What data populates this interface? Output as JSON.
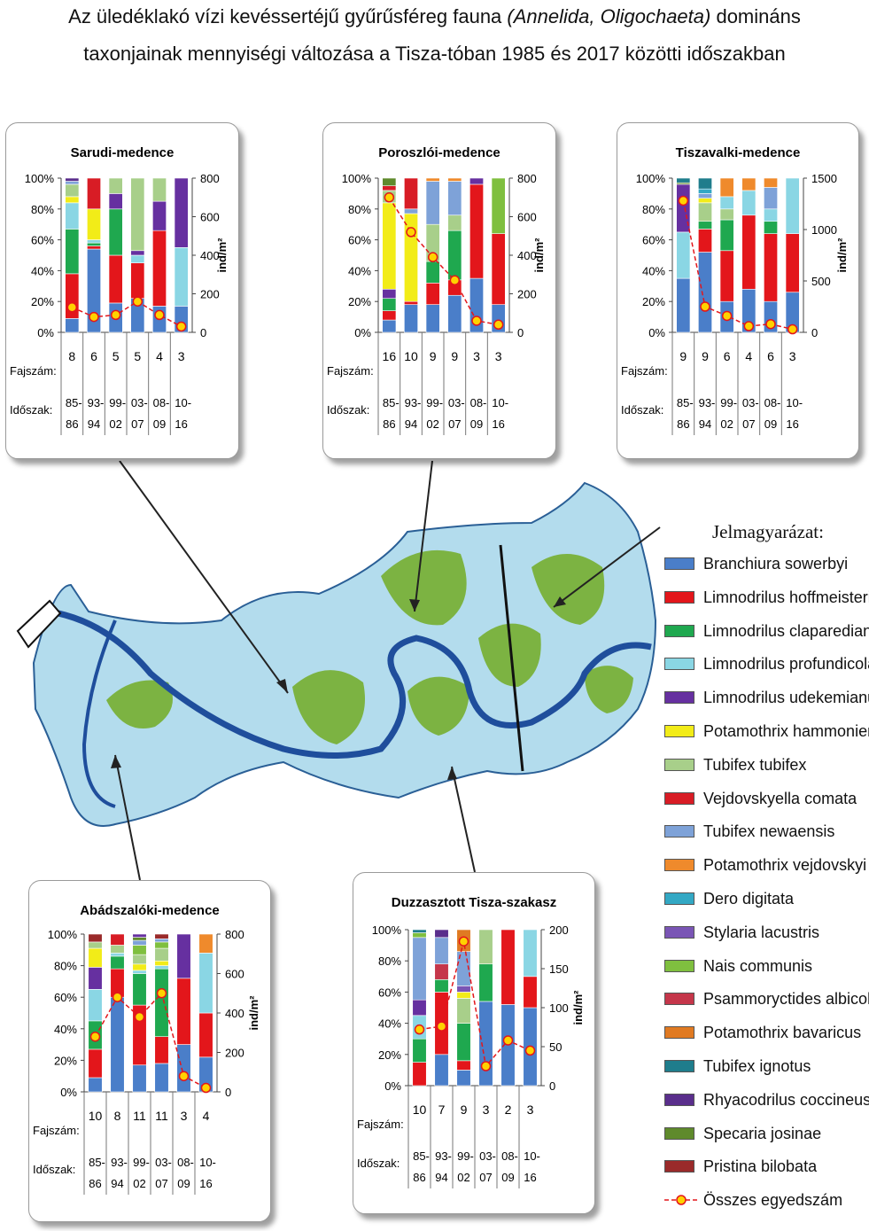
{
  "title": {
    "line1_prefix": "Az üledéklakó vízi kevéssertéjű gyűrűsféreg fauna ",
    "line1_italic": "(Annelida, Oligochaeta)",
    "line1_suffix": " domináns",
    "line2": "taxonjainak mennyiségi változása a Tisza-tóban 1985 és 2017 közötti időszakban"
  },
  "row_labels": {
    "fajszam": "Fajszám:",
    "idoszak": "Időszak:"
  },
  "unit_label": "ind/m²",
  "legend": {
    "title": "Jelmagyarázat:",
    "items": [
      {
        "label": "Branchiura sowerbyi",
        "color": "#4a7ec9"
      },
      {
        "label": "Limnodrilus hoffmeisteri",
        "color": "#e3161b"
      },
      {
        "label": "Limnodrilus claparedianus",
        "color": "#1fa84f"
      },
      {
        "label": "Limnodrilus profundicola",
        "color": "#8ad6e4"
      },
      {
        "label": "Limnodrilus udekemianus",
        "color": "#6630a0"
      },
      {
        "label": "Potamothrix hammoniensis",
        "color": "#f2ec18"
      },
      {
        "label": "Tubifex tubifex",
        "color": "#a8cf8a"
      },
      {
        "label": "Vejdovskyella comata",
        "color": "#d81c25"
      },
      {
        "label": "Tubifex newaensis",
        "color": "#7ea2d8"
      },
      {
        "label": "Potamothrix vejdovskyi",
        "color": "#ef8a2c"
      },
      {
        "label": "Dero digitata",
        "color": "#33a8c4"
      },
      {
        "label": "Stylaria lacustris",
        "color": "#7a55b5"
      },
      {
        "label": "Nais communis",
        "color": "#7fbf3f"
      },
      {
        "label": "Psammoryctides albicola",
        "color": "#c5364a"
      },
      {
        "label": "Potamothrix bavaricus",
        "color": "#e07a22"
      },
      {
        "label": "Tubifex ignotus",
        "color": "#1f7d8c"
      },
      {
        "label": "Rhyacodrilus coccineus",
        "color": "#5a2e8c"
      },
      {
        "label": "Specaria josinae",
        "color": "#5f8a2c"
      },
      {
        "label": "Pristina bilobata",
        "color": "#9a2a2a"
      }
    ],
    "total_label": "Összes egyedszám",
    "total_color": "#e3161b"
  },
  "chart_data": [
    {
      "type": "bar",
      "title": "Sarudi-medence",
      "categories": [
        "85-86",
        "93-94",
        "99-02",
        "03-07",
        "08-09",
        "10-16"
      ],
      "fajszam": [
        8,
        6,
        5,
        5,
        4,
        3
      ],
      "ylim": [
        0,
        100
      ],
      "y2lim": [
        0,
        800
      ],
      "y2ticks": [
        0,
        200,
        400,
        600,
        800
      ],
      "y2label": "ind/m²",
      "stacks": [
        [
          [
            "Branchiura sowerbyi",
            9
          ],
          [
            "Limnodrilus hoffmeisteri",
            29
          ],
          [
            "Limnodrilus claparedianus",
            29
          ],
          [
            "Limnodrilus profundicola",
            17
          ],
          [
            "Potamothrix hammoniensis",
            4
          ],
          [
            "Tubifex tubifex",
            8
          ],
          [
            "Tubifex newaensis",
            2
          ],
          [
            "Rhyacodrilus coccineus",
            2
          ]
        ],
        [
          [
            "Branchiura sowerbyi",
            54
          ],
          [
            "Limnodrilus hoffmeisteri",
            2
          ],
          [
            "Limnodrilus claparedianus",
            2
          ],
          [
            "Limnodrilus profundicola",
            2
          ],
          [
            "Potamothrix hammoniensis",
            20
          ],
          [
            "Vejdovskyella comata",
            20
          ]
        ],
        [
          [
            "Branchiura sowerbyi",
            19
          ],
          [
            "Limnodrilus hoffmeisteri",
            31
          ],
          [
            "Limnodrilus claparedianus",
            30
          ],
          [
            "Limnodrilus udekemianus",
            10
          ],
          [
            "Tubifex tubifex",
            10
          ]
        ],
        [
          [
            "Branchiura sowerbyi",
            22
          ],
          [
            "Limnodrilus hoffmeisteri",
            23
          ],
          [
            "Limnodrilus profundicola",
            5
          ],
          [
            "Limnodrilus udekemianus",
            3
          ],
          [
            "Tubifex tubifex",
            47
          ]
        ],
        [
          [
            "Branchiura sowerbyi",
            17
          ],
          [
            "Limnodrilus hoffmeisteri",
            49
          ],
          [
            "Limnodrilus udekemianus",
            19
          ],
          [
            "Tubifex tubifex",
            15
          ]
        ],
        [
          [
            "Branchiura sowerbyi",
            17
          ],
          [
            "Limnodrilus profundicola",
            38
          ],
          [
            "Limnodrilus udekemianus",
            45
          ]
        ]
      ],
      "total": [
        130,
        80,
        90,
        160,
        90,
        30
      ]
    },
    {
      "type": "bar",
      "title": "Poroszlói-medence",
      "categories": [
        "85-86",
        "93-94",
        "99-02",
        "03-07",
        "08-09",
        "10-16"
      ],
      "fajszam": [
        16,
        10,
        9,
        9,
        3,
        3
      ],
      "ylim": [
        0,
        100
      ],
      "y2lim": [
        0,
        800
      ],
      "y2ticks": [
        0,
        200,
        400,
        600,
        800
      ],
      "y2label": "ind/m²",
      "stacks": [
        [
          [
            "Branchiura sowerbyi",
            8
          ],
          [
            "Limnodrilus hoffmeisteri",
            6
          ],
          [
            "Limnodrilus claparedianus",
            8
          ],
          [
            "Limnodrilus udekemianus",
            6
          ],
          [
            "Potamothrix hammoniensis",
            56
          ],
          [
            "Tubifex tubifex",
            8
          ],
          [
            "Vejdovskyella comata",
            3
          ],
          [
            "Specaria josinae",
            5
          ]
        ],
        [
          [
            "Branchiura sowerbyi",
            18
          ],
          [
            "Limnodrilus hoffmeisteri",
            2
          ],
          [
            "Potamothrix hammoniensis",
            57
          ],
          [
            "Tubifex newaensis",
            3
          ],
          [
            "Vejdovskyella comata",
            20
          ]
        ],
        [
          [
            "Branchiura sowerbyi",
            18
          ],
          [
            "Limnodrilus hoffmeisteri",
            14
          ],
          [
            "Limnodrilus claparedianus",
            14
          ],
          [
            "Tubifex tubifex",
            24
          ],
          [
            "Tubifex newaensis",
            28
          ],
          [
            "Potamothrix vejdovskyi",
            2
          ]
        ],
        [
          [
            "Branchiura sowerbyi",
            24
          ],
          [
            "Limnodrilus hoffmeisteri",
            10
          ],
          [
            "Limnodrilus claparedianus",
            32
          ],
          [
            "Tubifex tubifex",
            10
          ],
          [
            "Tubifex newaensis",
            22
          ],
          [
            "Potamothrix vejdovskyi",
            2
          ]
        ],
        [
          [
            "Branchiura sowerbyi",
            35
          ],
          [
            "Limnodrilus hoffmeisteri",
            61
          ],
          [
            "Limnodrilus udekemianus",
            4
          ]
        ],
        [
          [
            "Branchiura sowerbyi",
            18
          ],
          [
            "Limnodrilus hoffmeisteri",
            46
          ],
          [
            "Nais communis",
            36
          ]
        ]
      ],
      "total": [
        700,
        520,
        390,
        270,
        60,
        40
      ]
    },
    {
      "type": "bar",
      "title": "Tiszavalki-medence",
      "categories": [
        "85-86",
        "93-94",
        "99-02",
        "03-07",
        "08-09",
        "10-16"
      ],
      "fajszam": [
        9,
        9,
        6,
        4,
        6,
        3
      ],
      "ylim": [
        0,
        100
      ],
      "y2lim": [
        0,
        1500
      ],
      "y2ticks": [
        0,
        500,
        1000,
        1500
      ],
      "y2label": "ind/m²",
      "stacks": [
        [
          [
            "Branchiura sowerbyi",
            35
          ],
          [
            "Limnodrilus profundicola",
            30
          ],
          [
            "Limnodrilus udekemianus",
            31
          ],
          [
            "Specaria josinae",
            1
          ],
          [
            "Tubifex ignotus",
            3
          ]
        ],
        [
          [
            "Branchiura sowerbyi",
            52
          ],
          [
            "Limnodrilus hoffmeisteri",
            15
          ],
          [
            "Limnodrilus claparedianus",
            5
          ],
          [
            "Tubifex tubifex",
            12
          ],
          [
            "Potamothrix hammoniensis",
            3
          ],
          [
            "Tubifex newaensis",
            3
          ],
          [
            "Dero digitata",
            3
          ],
          [
            "Tubifex ignotus",
            7
          ]
        ],
        [
          [
            "Branchiura sowerbyi",
            20
          ],
          [
            "Limnodrilus hoffmeisteri",
            33
          ],
          [
            "Limnodrilus claparedianus",
            20
          ],
          [
            "Tubifex tubifex",
            7
          ],
          [
            "Limnodrilus profundicola",
            8
          ],
          [
            "Potamothrix vejdovskyi",
            12
          ]
        ],
        [
          [
            "Branchiura sowerbyi",
            28
          ],
          [
            "Limnodrilus hoffmeisteri",
            48
          ],
          [
            "Limnodrilus profundicola",
            16
          ],
          [
            "Potamothrix vejdovskyi",
            8
          ]
        ],
        [
          [
            "Branchiura sowerbyi",
            20
          ],
          [
            "Limnodrilus hoffmeisteri",
            44
          ],
          [
            "Limnodrilus claparedianus",
            8
          ],
          [
            "Limnodrilus profundicola",
            8
          ],
          [
            "Tubifex newaensis",
            14
          ],
          [
            "Potamothrix vejdovskyi",
            6
          ]
        ],
        [
          [
            "Branchiura sowerbyi",
            26
          ],
          [
            "Limnodrilus hoffmeisteri",
            38
          ],
          [
            "Limnodrilus profundicola",
            36
          ]
        ]
      ],
      "total": [
        1280,
        250,
        160,
        60,
        80,
        30
      ]
    },
    {
      "type": "bar",
      "title": "Abádszalóki-medence",
      "categories": [
        "85-86",
        "93-94",
        "99-02",
        "03-07",
        "08-09",
        "10-16"
      ],
      "fajszam": [
        10,
        8,
        11,
        11,
        3,
        4
      ],
      "ylim": [
        0,
        100
      ],
      "y2lim": [
        0,
        800
      ],
      "y2ticks": [
        0,
        200,
        400,
        600,
        800
      ],
      "y2label": "ind/m²",
      "stacks": [
        [
          [
            "Branchiura sowerbyi",
            9
          ],
          [
            "Limnodrilus hoffmeisteri",
            18
          ],
          [
            "Limnodrilus claparedianus",
            18
          ],
          [
            "Limnodrilus profundicola",
            20
          ],
          [
            "Limnodrilus udekemianus",
            14
          ],
          [
            "Potamothrix hammoniensis",
            12
          ],
          [
            "Tubifex tubifex",
            4
          ],
          [
            "Pristina bilobata",
            5
          ]
        ],
        [
          [
            "Branchiura sowerbyi",
            60
          ],
          [
            "Limnodrilus hoffmeisteri",
            18
          ],
          [
            "Limnodrilus claparedianus",
            8
          ],
          [
            "Limnodrilus profundicola",
            2
          ],
          [
            "Tubifex tubifex",
            5
          ],
          [
            "Vejdovskyella comata",
            7
          ]
        ],
        [
          [
            "Branchiura sowerbyi",
            17
          ],
          [
            "Limnodrilus hoffmeisteri",
            38
          ],
          [
            "Limnodrilus claparedianus",
            20
          ],
          [
            "Limnodrilus profundicola",
            2
          ],
          [
            "Potamothrix hammoniensis",
            4
          ],
          [
            "Tubifex tubifex",
            6
          ],
          [
            "Nais communis",
            6
          ],
          [
            "Tubifex newaensis",
            3
          ],
          [
            "Specaria josinae",
            2
          ],
          [
            "Limnodrilus udekemianus",
            2
          ]
        ],
        [
          [
            "Branchiura sowerbyi",
            18
          ],
          [
            "Limnodrilus hoffmeisteri",
            17
          ],
          [
            "Limnodrilus claparedianus",
            43
          ],
          [
            "Limnodrilus profundicola",
            2
          ],
          [
            "Potamothrix hammoniensis",
            3
          ],
          [
            "Tubifex tubifex",
            8
          ],
          [
            "Nais communis",
            4
          ],
          [
            "Tubifex newaensis",
            2
          ],
          [
            "Pristina bilobata",
            3
          ]
        ],
        [
          [
            "Branchiura sowerbyi",
            30
          ],
          [
            "Limnodrilus hoffmeisteri",
            42
          ],
          [
            "Limnodrilus udekemianus",
            28
          ]
        ],
        [
          [
            "Branchiura sowerbyi",
            22
          ],
          [
            "Limnodrilus hoffmeisteri",
            28
          ],
          [
            "Limnodrilus profundicola",
            38
          ],
          [
            "Potamothrix vejdovskyi",
            12
          ]
        ]
      ],
      "total": [
        280,
        480,
        380,
        500,
        80,
        20
      ]
    },
    {
      "type": "bar",
      "title": "Duzzasztott Tisza-szakasz",
      "categories": [
        "85-86",
        "93-94",
        "99-02",
        "03-07",
        "08-09",
        "10-16"
      ],
      "fajszam": [
        10,
        7,
        9,
        3,
        2,
        3
      ],
      "ylim": [
        0,
        100
      ],
      "y2lim": [
        0,
        200
      ],
      "y2ticks": [
        0,
        50,
        100,
        150,
        200
      ],
      "y2label": "ind/m²",
      "stacks": [
        [
          [
            "Limnodrilus hoffmeisteri",
            15
          ],
          [
            "Limnodrilus claparedianus",
            15
          ],
          [
            "Limnodrilus profundicola",
            15
          ],
          [
            "Limnodrilus udekemianus",
            10
          ],
          [
            "Tubifex newaensis",
            40
          ],
          [
            "Nais communis",
            3
          ],
          [
            "Tubifex ignotus",
            2
          ]
        ],
        [
          [
            "Branchiura sowerbyi",
            20
          ],
          [
            "Limnodrilus hoffmeisteri",
            40
          ],
          [
            "Limnodrilus claparedianus",
            8
          ],
          [
            "Psammoryctides albicola",
            10
          ],
          [
            "Tubifex newaensis",
            17
          ],
          [
            "Rhyacodrilus coccineus",
            5
          ]
        ],
        [
          [
            "Branchiura sowerbyi",
            10
          ],
          [
            "Limnodrilus hoffmeisteri",
            6
          ],
          [
            "Limnodrilus claparedianus",
            24
          ],
          [
            "Tubifex tubifex",
            16
          ],
          [
            "Potamothrix hammoniensis",
            4
          ],
          [
            "Stylaria lacustris",
            4
          ],
          [
            "Tubifex newaensis",
            22
          ],
          [
            "Potamothrix bavaricus",
            14
          ]
        ],
        [
          [
            "Branchiura sowerbyi",
            54
          ],
          [
            "Limnodrilus claparedianus",
            24
          ],
          [
            "Tubifex tubifex",
            22
          ]
        ],
        [
          [
            "Branchiura sowerbyi",
            52
          ],
          [
            "Limnodrilus hoffmeisteri",
            48
          ]
        ],
        [
          [
            "Branchiura sowerbyi",
            50
          ],
          [
            "Limnodrilus hoffmeisteri",
            20
          ],
          [
            "Limnodrilus profundicola",
            30
          ]
        ]
      ],
      "total": [
        72,
        76,
        185,
        25,
        58,
        45
      ]
    }
  ]
}
